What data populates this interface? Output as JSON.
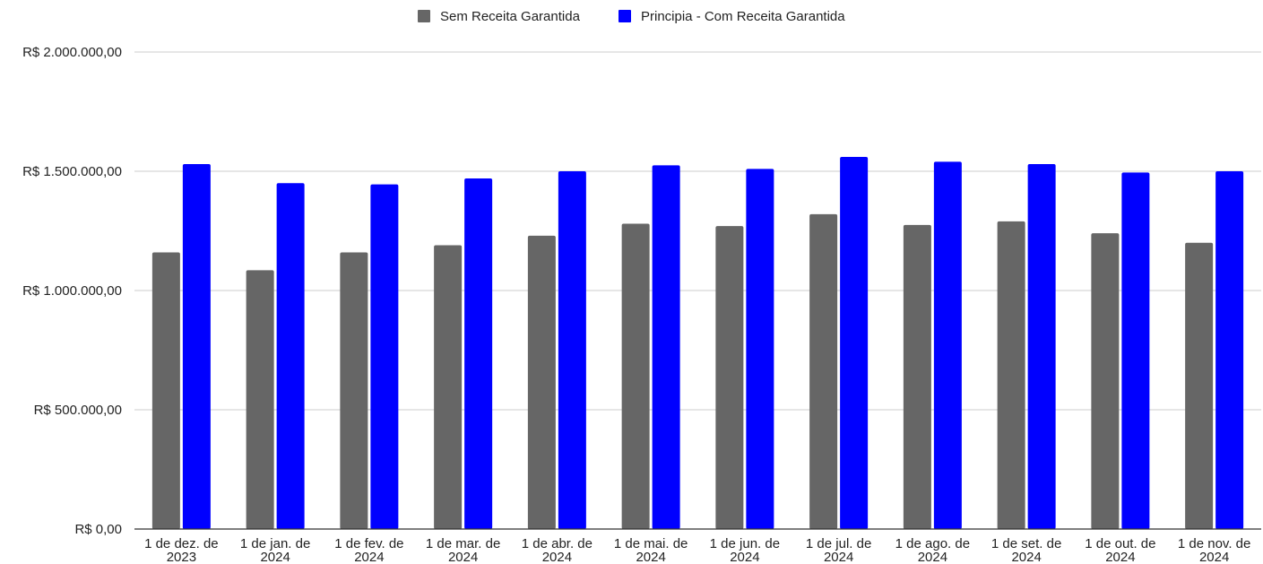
{
  "chart_data": {
    "type": "bar",
    "title": "",
    "xlabel": "",
    "ylabel": "",
    "ylim": [
      0,
      2000000
    ],
    "yticks": [
      {
        "value": 0,
        "label": "R$ 0,00"
      },
      {
        "value": 500000,
        "label": "R$ 500.000,00"
      },
      {
        "value": 1000000,
        "label": "R$ 1.000.000,00"
      },
      {
        "value": 1500000,
        "label": "R$ 1.500.000,00"
      },
      {
        "value": 2000000,
        "label": "R$ 2.000.000,00"
      }
    ],
    "grid": true,
    "legend_position": "top",
    "categories": [
      [
        "1 de dez. de",
        "2023"
      ],
      [
        "1 de jan. de",
        "2024"
      ],
      [
        "1 de fev. de",
        "2024"
      ],
      [
        "1 de mar. de",
        "2024"
      ],
      [
        "1 de abr. de",
        "2024"
      ],
      [
        "1 de mai. de",
        "2024"
      ],
      [
        "1 de jun. de",
        "2024"
      ],
      [
        "1 de jul. de",
        "2024"
      ],
      [
        "1 de ago. de",
        "2024"
      ],
      [
        "1 de set. de",
        "2024"
      ],
      [
        "1 de out. de",
        "2024"
      ],
      [
        "1 de nov. de",
        "2024"
      ]
    ],
    "series": [
      {
        "name": "Sem Receita Garantida",
        "color": "#666666",
        "values": [
          1160000,
          1085000,
          1160000,
          1190000,
          1230000,
          1280000,
          1270000,
          1320000,
          1275000,
          1290000,
          1240000,
          1200000
        ]
      },
      {
        "name": "Principia - Com Receita Garantida",
        "color": "#0000ff",
        "values": [
          1530000,
          1450000,
          1445000,
          1470000,
          1500000,
          1525000,
          1510000,
          1560000,
          1540000,
          1530000,
          1495000,
          1500000
        ]
      }
    ]
  }
}
